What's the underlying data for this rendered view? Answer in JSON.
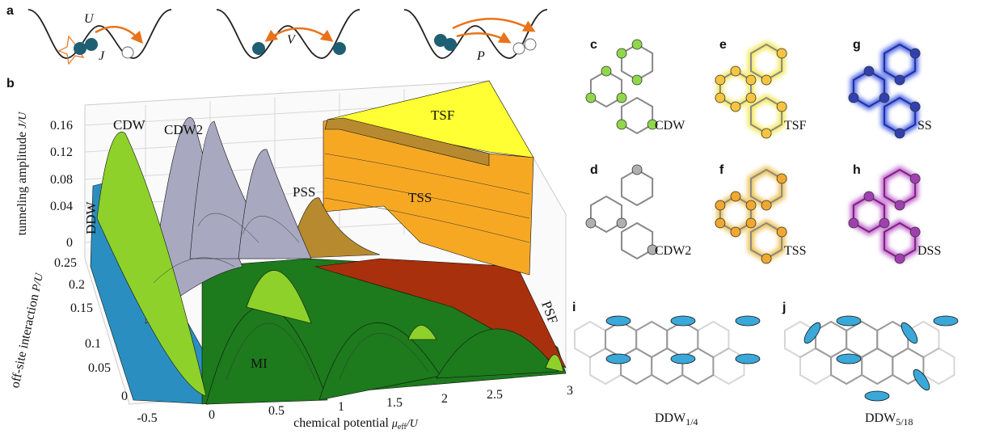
{
  "panel_a": {
    "label": "a",
    "symbols": [
      "U",
      "J",
      "V",
      "P"
    ]
  },
  "panel_b": {
    "label": "b",
    "z_axis_label": "tunneling amplitude",
    "z_axis_var": "J/U",
    "y_axis_label": "off-site interaction",
    "y_axis_var": "P/U",
    "x_axis_label": "chemical potential",
    "x_axis_var": {
      "symbol": "μ",
      "sub": "eff",
      "rest": "/U"
    },
    "z_ticks": [
      "0.16",
      "0.12",
      "0.08",
      "0.04",
      "0"
    ],
    "y_ticks": [
      "0.25",
      "0.2",
      "0.15",
      "0.1",
      "0.05",
      "0"
    ],
    "x_ticks": [
      "-0.5",
      "0",
      "0.5",
      "1",
      "1.5",
      "2",
      "2.5",
      "3"
    ],
    "phases": [
      "CDW",
      "CDW2",
      "PSS",
      "TSF",
      "TSS",
      "DDW",
      "MI",
      "PSF"
    ]
  },
  "panels_right": [
    {
      "label": "c",
      "name": "CDW"
    },
    {
      "label": "d",
      "name": "CDW2"
    },
    {
      "label": "e",
      "name": "TSF"
    },
    {
      "label": "f",
      "name": "TSS"
    },
    {
      "label": "g",
      "name": "SS"
    },
    {
      "label": "h",
      "name": "DSS"
    }
  ],
  "panels_bottom": [
    {
      "label": "i",
      "name": "DDW",
      "sub": "1/4"
    },
    {
      "label": "j",
      "name": "DDW",
      "sub": "5/18"
    }
  ]
}
